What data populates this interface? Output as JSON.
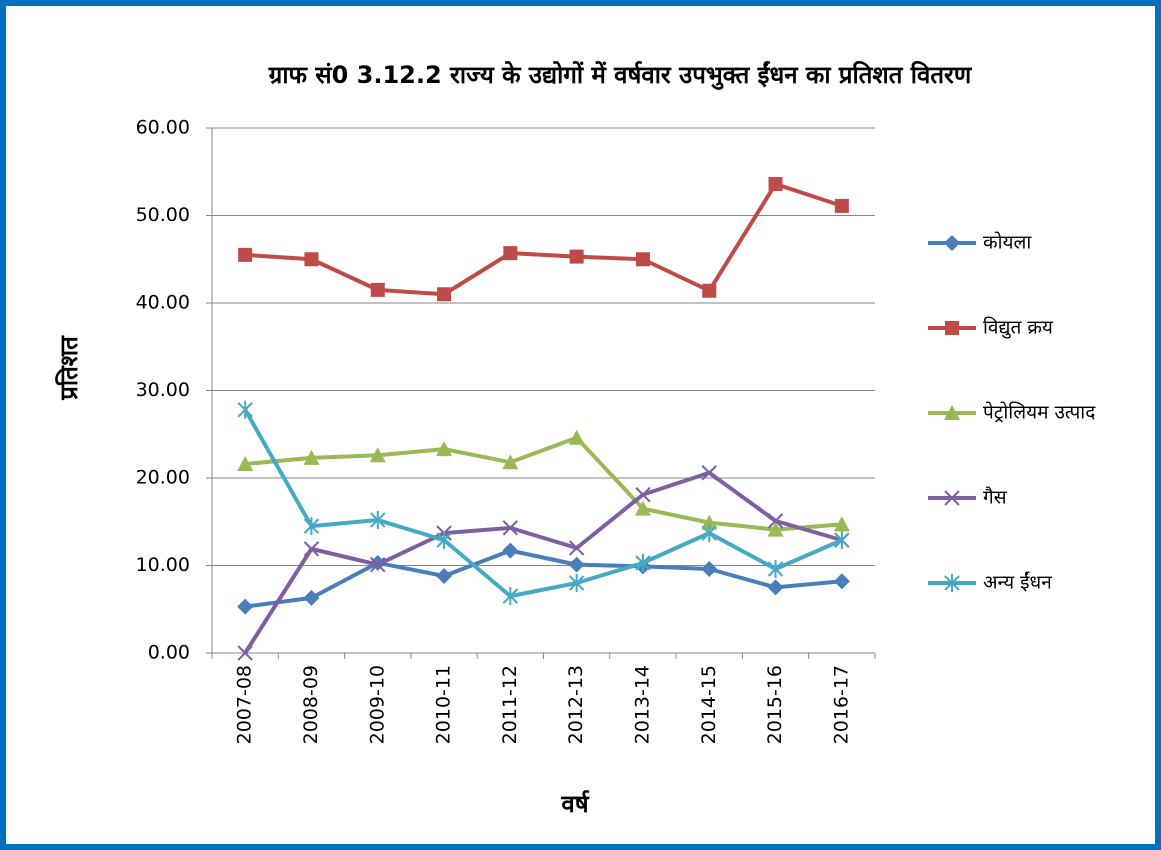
{
  "chart_data": {
    "type": "line",
    "title": "ग्राफ सं0 3.12.2 राज्य के उद्योगों में वर्षवार उपभुक्त ईंधन का प्रतिशत वितरण",
    "x_label": "वर्ष",
    "y_label": "प्रतिशत",
    "categories": [
      "2007-08",
      "2008-09",
      "2009-10",
      "2010-11",
      "2011-12",
      "2012-13",
      "2013-14",
      "2014-15",
      "2015-16",
      "2016-17"
    ],
    "series": [
      {
        "name": "कोयला",
        "color": "#4a7ebb",
        "marker": "diamond",
        "values": [
          5.3,
          6.3,
          10.3,
          8.8,
          11.7,
          10.1,
          9.9,
          9.6,
          7.5,
          8.2
        ]
      },
      {
        "name": "विद्युत क्रय",
        "color": "#be4b48",
        "marker": "square",
        "values": [
          45.5,
          45.0,
          41.5,
          41.0,
          45.7,
          45.3,
          45.0,
          41.4,
          53.6,
          51.1
        ]
      },
      {
        "name": "पेट्रोलियम उत्पाद",
        "color": "#98b954",
        "marker": "triangle",
        "values": [
          21.6,
          22.3,
          22.6,
          23.3,
          21.8,
          24.6,
          16.5,
          14.9,
          14.1,
          14.7
        ]
      },
      {
        "name": "गैस",
        "color": "#7d60a0",
        "marker": "x",
        "values": [
          0,
          11.9,
          10.1,
          13.7,
          14.3,
          12.0,
          18.1,
          20.6,
          15.1,
          12.9
        ]
      },
      {
        "name": "अन्य ईंधन",
        "color": "#46aac5",
        "marker": "star",
        "values": [
          27.8,
          14.5,
          15.2,
          12.9,
          6.5,
          8.0,
          10.3,
          13.7,
          9.6,
          12.9
        ]
      }
    ],
    "ylim": [
      0,
      60
    ],
    "yticks": [
      {
        "value": 0,
        "label": "0.00"
      },
      {
        "value": 10,
        "label": "10.00"
      },
      {
        "value": 20,
        "label": "20.00"
      },
      {
        "value": 30,
        "label": "30.00"
      },
      {
        "value": 40,
        "label": "40.00"
      },
      {
        "value": 50,
        "label": "50.00"
      },
      {
        "value": 60,
        "label": "60.00"
      }
    ],
    "grid": true,
    "legend": "right"
  }
}
